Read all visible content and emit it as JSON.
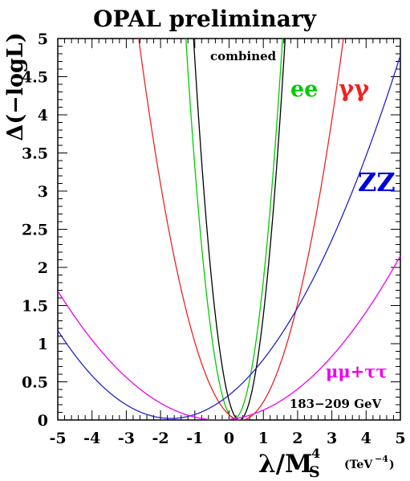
{
  "chart_data": {
    "type": "line",
    "title": "OPAL preliminary",
    "ylabel": "Δ(−logL)",
    "xlabel_main": "λ/M",
    "xlabel_sub": "S",
    "xlabel_sup": "4",
    "xlabel_units": "(TeV",
    "xlabel_units_exp": "−4",
    "xlabel_units_close": ")",
    "xlim": [
      -5,
      5
    ],
    "ylim": [
      0,
      5
    ],
    "x_ticks": [
      "-5",
      "-4",
      "-3",
      "-2",
      "-1",
      "0",
      "1",
      "2",
      "3",
      "4",
      "5"
    ],
    "y_ticks": [
      "0",
      "0.5",
      "1",
      "1.5",
      "2",
      "2.5",
      "3",
      "3.5",
      "4",
      "4.5",
      "5"
    ],
    "annotation": "183−209 GeV",
    "series": [
      {
        "name": "combined",
        "color": "#000000",
        "label_color": "#000000",
        "min_x": 0.3,
        "y_at_min": 0.0,
        "curvature": 2.8,
        "label_size": "small"
      },
      {
        "name": "ee",
        "color": "#00cc00",
        "label_color": "#00cc00",
        "min_x": 0.15,
        "y_at_min": 0.02,
        "curvature": 2.5,
        "label_size": "large"
      },
      {
        "name": "γγ",
        "color": "#ee2222",
        "label_color": "#ee2222",
        "min_x": 0.35,
        "y_at_min": 0.0,
        "curvature": 0.56,
        "label_size": "large"
      },
      {
        "name": "ZZ",
        "color": "#2222cc",
        "label_color": "#0000dd",
        "min_x": -1.7,
        "y_at_min": 0.02,
        "curvature": 0.106,
        "label_size": "xlarge"
      },
      {
        "name": "μμ+ττ",
        "color": "#ee00ee",
        "label_color": "#ee00ee",
        "min_x": -0.3,
        "y_at_min": 0.0,
        "curvature": 0.0766,
        "label_size": "medium"
      }
    ]
  }
}
